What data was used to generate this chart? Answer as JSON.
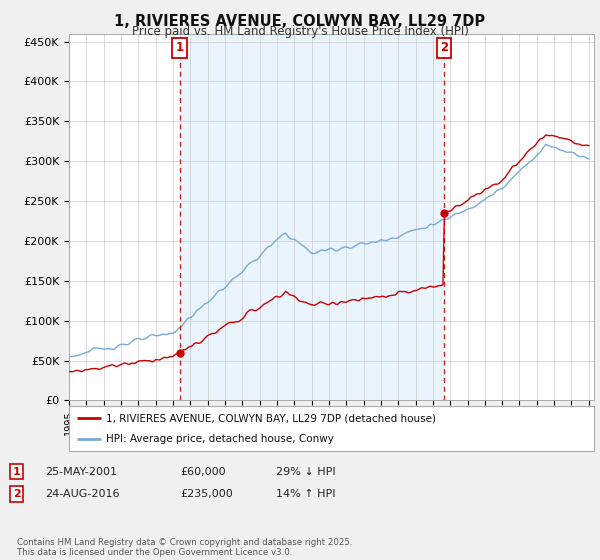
{
  "title": "1, RIVIERES AVENUE, COLWYN BAY, LL29 7DP",
  "subtitle": "Price paid vs. HM Land Registry's House Price Index (HPI)",
  "yticks": [
    0,
    50000,
    100000,
    150000,
    200000,
    250000,
    300000,
    350000,
    400000,
    450000
  ],
  "ytick_labels": [
    "£0",
    "£50K",
    "£100K",
    "£150K",
    "£200K",
    "£250K",
    "£300K",
    "£350K",
    "£400K",
    "£450K"
  ],
  "year_start": 1995,
  "year_end": 2025,
  "hpi_color": "#7aaad4",
  "price_color": "#cc0000",
  "vline_color": "#cc0000",
  "shade_color": "#ddeeff",
  "purchase1_year": 2001.38,
  "purchase1_price": 60000,
  "purchase1_label": "1",
  "purchase2_year": 2016.65,
  "purchase2_price": 235000,
  "purchase2_label": "2",
  "legend_line1": "1, RIVIERES AVENUE, COLWYN BAY, LL29 7DP (detached house)",
  "legend_line2": "HPI: Average price, detached house, Conwy",
  "table_row1": [
    "1",
    "25-MAY-2001",
    "£60,000",
    "29% ↓ HPI"
  ],
  "table_row2": [
    "2",
    "24-AUG-2016",
    "£235,000",
    "14% ↑ HPI"
  ],
  "footer": "Contains HM Land Registry data © Crown copyright and database right 2025.\nThis data is licensed under the Open Government Licence v3.0.",
  "bg_color": "#f0f0f0",
  "plot_bg_color": "#ffffff"
}
